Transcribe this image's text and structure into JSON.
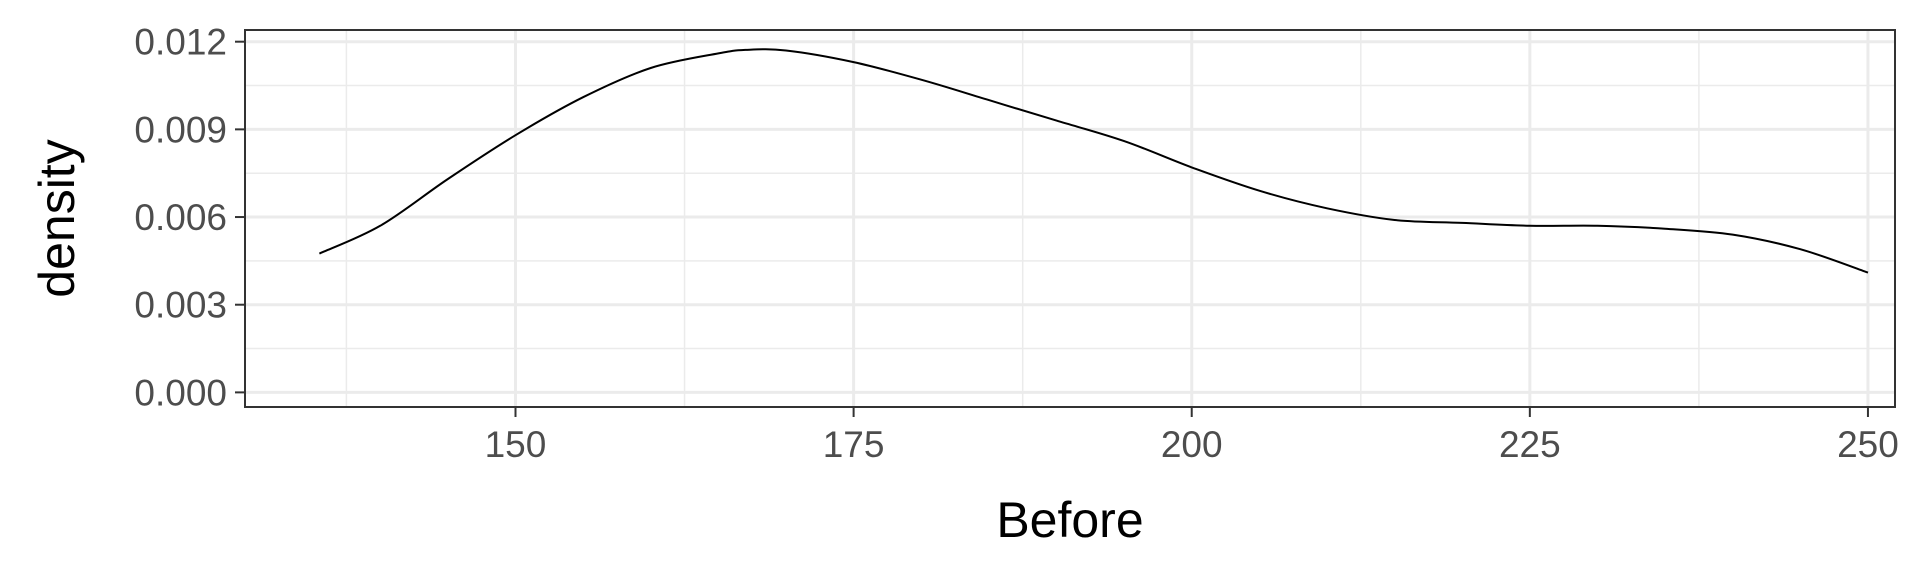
{
  "chart_data": {
    "type": "line",
    "title": "",
    "xlabel": "Before",
    "ylabel": "density",
    "xlim": [
      130,
      252
    ],
    "ylim": [
      -0.0005,
      0.0124
    ],
    "x_ticks": [
      150,
      175,
      200,
      225,
      250
    ],
    "x_tick_labels": [
      "150",
      "175",
      "200",
      "225",
      "250"
    ],
    "x_minor_ticks": [
      137.5,
      162.5,
      187.5,
      212.5,
      237.5
    ],
    "y_ticks": [
      0,
      0.003,
      0.006,
      0.009,
      0.012
    ],
    "y_tick_labels": [
      "0.000",
      "0.003",
      "0.006",
      "0.009",
      "0.012"
    ],
    "y_minor_ticks": [
      0.0015,
      0.0045,
      0.0075,
      0.0105
    ],
    "grid": true,
    "legend": "none",
    "colors": {
      "line": "#000000",
      "grid": "#ebebeb",
      "panel_border": "#333333",
      "tick_text": "#4d4d4d"
    },
    "series": [
      {
        "x": [
          135.5,
          140,
          145,
          150,
          155,
          160,
          165,
          167,
          170,
          175,
          180,
          185,
          190,
          195,
          200,
          205,
          210,
          215,
          220,
          225,
          230,
          235,
          240,
          245,
          250
        ],
        "values": [
          0.00475,
          0.0057,
          0.0073,
          0.0088,
          0.0101,
          0.0111,
          0.0116,
          0.01172,
          0.0117,
          0.0113,
          0.0107,
          0.01,
          0.0093,
          0.0086,
          0.0077,
          0.0069,
          0.0063,
          0.0059,
          0.0058,
          0.0057,
          0.0057,
          0.0056,
          0.0054,
          0.0049,
          0.0041
        ]
      }
    ]
  }
}
